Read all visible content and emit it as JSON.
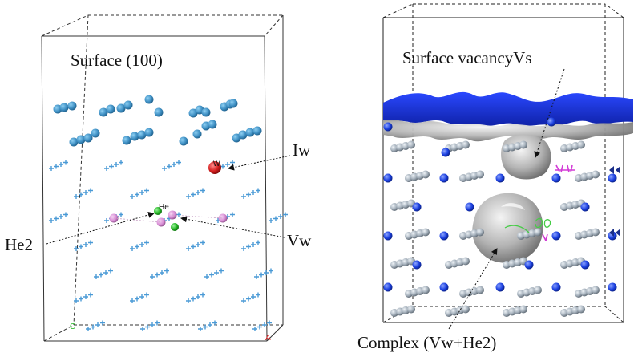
{
  "left_panel": {
    "title": "Surface (100)",
    "labels": {
      "iw": "Iw",
      "he2": "He2",
      "vw": "Vw"
    },
    "atom_tags": {
      "w": "W",
      "he": "He"
    },
    "axis_tags": {
      "c": "C",
      "a": "A"
    },
    "colors": {
      "w_atom": "#3f90c4",
      "cross": "#4a9ad6",
      "interstitial": "#d41e1e",
      "helium": "#22b522",
      "vacancy": "#d98fd6",
      "box": "#333333"
    }
  },
  "right_panel": {
    "labels": {
      "surface_vacancy": "Surface vacancyVs",
      "complex": "Complex (Vw+He2)"
    },
    "colors": {
      "surface_blue": "#1530e6",
      "isosurface": "#b3b3b3",
      "atom_gray": "#a9b4bf",
      "atom_blue": "#1a3fe0",
      "magenta": "#d23ad6",
      "green": "#45cc45"
    }
  }
}
